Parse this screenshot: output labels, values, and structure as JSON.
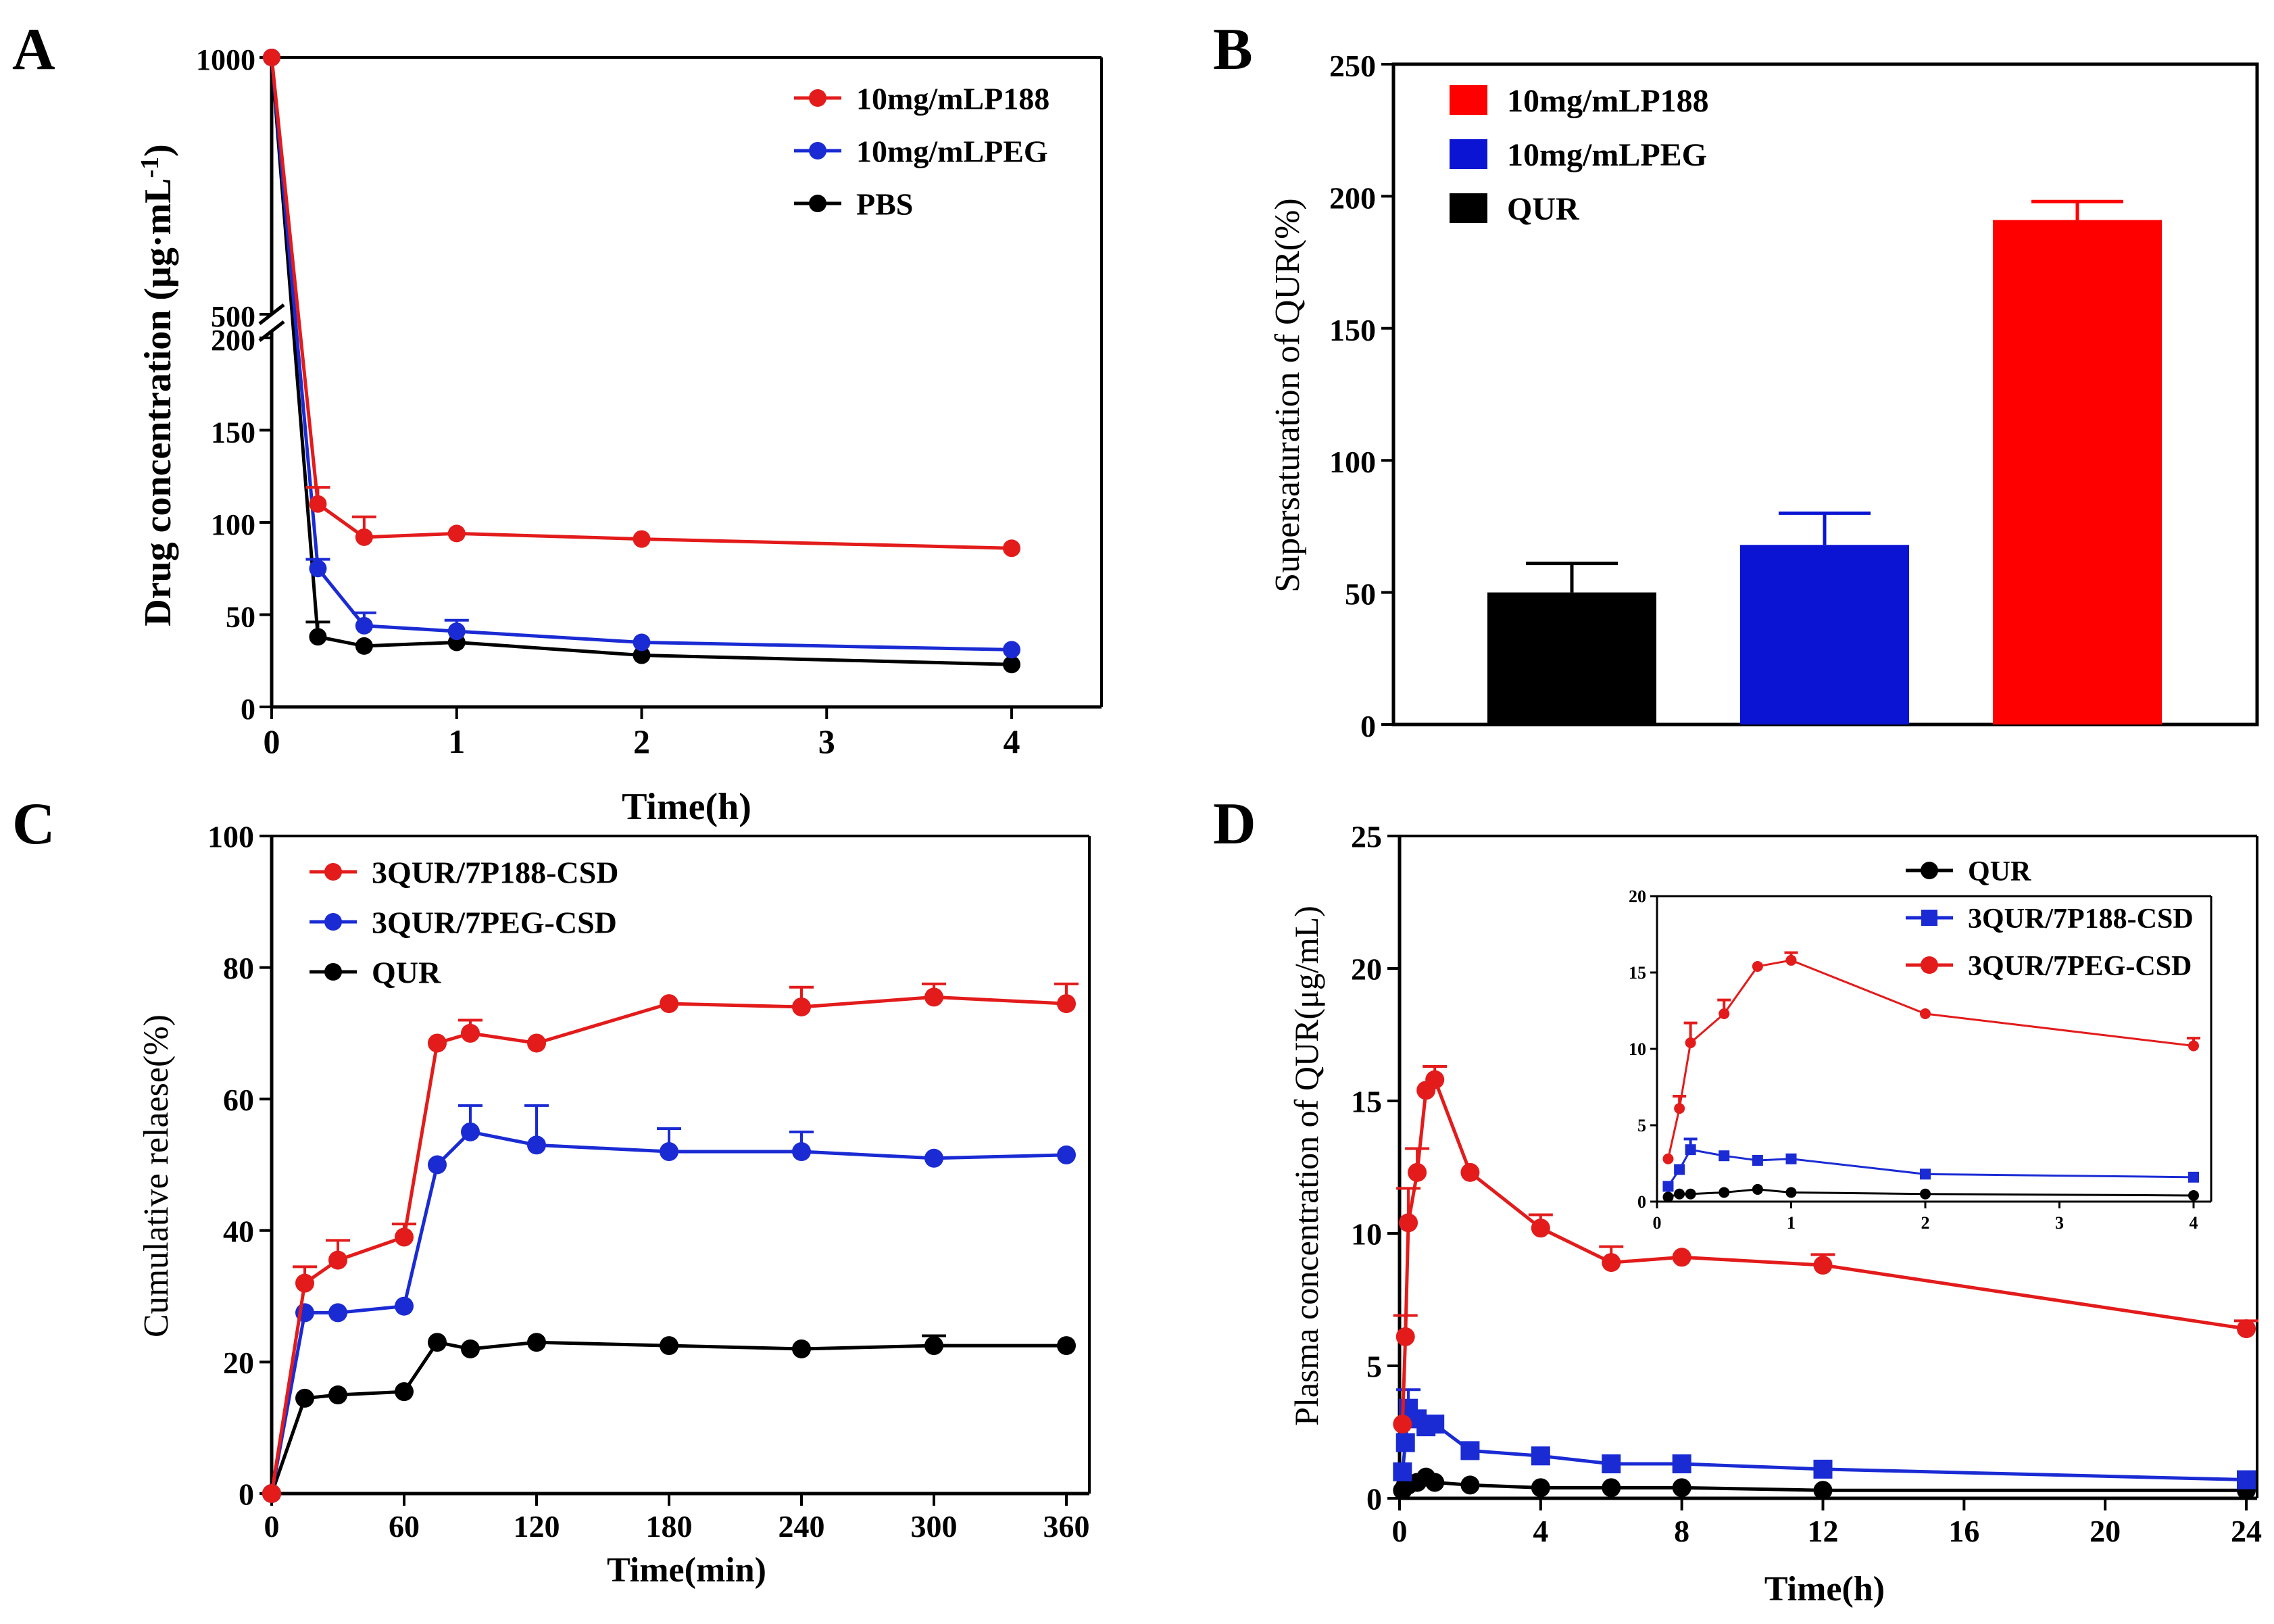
{
  "colors": {
    "red": "#e31b1b",
    "blue": "#1a2bd4",
    "black": "#000000",
    "bar_red": "#ff0000",
    "bar_blue": "#0a14d2"
  },
  "panels": {
    "a": "A",
    "b": "B",
    "c": "C",
    "d": "D"
  },
  "chart_data": [
    {
      "id": "A",
      "type": "line",
      "xlabel": "Time(h)",
      "ylabel": "Drug concentration (μg·mL",
      "ylabel_sup": "-1",
      "ylabel_close": ")",
      "x_ticks": [
        0,
        1,
        2,
        3,
        4
      ],
      "y_ticks_lower": [
        0,
        50,
        100,
        150,
        200
      ],
      "y_ticks_upper": [
        500,
        1000
      ],
      "ylim_lower": [
        0,
        200
      ],
      "ylim_upper": [
        500,
        1000
      ],
      "y_break": true,
      "series": [
        {
          "name": "10mg/mLP188",
          "color": "#e31b1b",
          "x": [
            0,
            0.25,
            0.5,
            1,
            2,
            4
          ],
          "y": [
            1000,
            110,
            92,
            94,
            91,
            86
          ],
          "err": [
            0,
            9,
            11,
            0,
            0,
            0
          ]
        },
        {
          "name": "10mg/mLPEG",
          "color": "#1a2bd4",
          "x": [
            0,
            0.25,
            0.5,
            1,
            2,
            4
          ],
          "y": [
            1000,
            75,
            44,
            41,
            35,
            31
          ],
          "err": [
            0,
            5,
            7,
            6,
            0,
            0
          ]
        },
        {
          "name": "PBS",
          "color": "#000000",
          "x": [
            0,
            0.25,
            0.5,
            1,
            2,
            4
          ],
          "y": [
            1000,
            38,
            33,
            35,
            28,
            23
          ],
          "err": [
            0,
            8,
            0,
            0,
            0,
            0
          ]
        }
      ]
    },
    {
      "id": "B",
      "type": "bar",
      "ylabel": "Supersaturation of QUR(%)",
      "y_ticks": [
        0,
        50,
        100,
        150,
        200,
        250
      ],
      "ylim": [
        0,
        250
      ],
      "categories": [
        "QUR",
        "10mg/mLPEG",
        "10mg/mLP188"
      ],
      "values": [
        50,
        68,
        191
      ],
      "err": [
        11,
        12,
        7
      ],
      "bar_colors": [
        "#000000",
        "#0a14d2",
        "#ff0000"
      ],
      "legend": [
        {
          "name": "10mg/mLP188",
          "color": "#ff0000"
        },
        {
          "name": "10mg/mLPEG",
          "color": "#0a14d2"
        },
        {
          "name": "QUR",
          "color": "#000000"
        }
      ]
    },
    {
      "id": "C",
      "type": "line",
      "xlabel": "Time(min)",
      "ylabel": "Cumulative relaese(%)",
      "x_ticks": [
        0,
        60,
        120,
        180,
        240,
        300,
        360
      ],
      "y_ticks": [
        0,
        20,
        40,
        60,
        80,
        100
      ],
      "xlim": [
        0,
        360
      ],
      "ylim": [
        0,
        100
      ],
      "series": [
        {
          "name": "3QUR/7P188-CSD",
          "color": "#e31b1b",
          "x": [
            0,
            15,
            30,
            60,
            75,
            90,
            120,
            180,
            240,
            300,
            360
          ],
          "y": [
            0,
            32,
            35.5,
            39,
            68.5,
            70,
            68.5,
            74.5,
            74,
            75.5,
            74.5
          ],
          "err": [
            0,
            2.5,
            3,
            2,
            0,
            2,
            0,
            0,
            3,
            2,
            3
          ]
        },
        {
          "name": "3QUR/7PEG-CSD",
          "color": "#1a2bd4",
          "x": [
            0,
            15,
            30,
            60,
            75,
            90,
            120,
            180,
            240,
            300,
            360
          ],
          "y": [
            0,
            27.5,
            27.5,
            28.5,
            50,
            55,
            53,
            52,
            52,
            51,
            51.5
          ],
          "err": [
            0,
            0,
            0,
            0,
            0,
            4,
            6,
            3.5,
            3,
            0,
            0
          ]
        },
        {
          "name": "QUR",
          "color": "#000000",
          "x": [
            0,
            15,
            30,
            60,
            75,
            90,
            120,
            180,
            240,
            300,
            360
          ],
          "y": [
            0,
            14.5,
            15,
            15.5,
            23,
            22,
            23,
            22.5,
            22,
            22.5,
            22.5
          ],
          "err": [
            0,
            0,
            0,
            0,
            0,
            0,
            0,
            0,
            0,
            1.5,
            0
          ]
        }
      ]
    },
    {
      "id": "D",
      "type": "line",
      "xlabel": "Time(h)",
      "ylabel": "Plasma concentration of QUR(μg/mL)",
      "x_ticks": [
        0,
        4,
        8,
        12,
        16,
        20,
        24
      ],
      "y_ticks": [
        0,
        5,
        10,
        15,
        20,
        25
      ],
      "xlim": [
        0,
        24
      ],
      "ylim": [
        0,
        25
      ],
      "series": [
        {
          "name": "QUR",
          "color": "#000000",
          "marker": "circle",
          "x": [
            0.083,
            0.167,
            0.25,
            0.5,
            0.75,
            1,
            2,
            4,
            6,
            8,
            12,
            24
          ],
          "y": [
            0.3,
            0.5,
            0.5,
            0.6,
            0.8,
            0.6,
            0.5,
            0.4,
            0.4,
            0.4,
            0.3,
            0.3
          ],
          "err": [
            0,
            0,
            0,
            0,
            0,
            0,
            0,
            0,
            0,
            0,
            0,
            0
          ]
        },
        {
          "name": "3QUR/7P188-CSD",
          "color": "#1a2bd4",
          "marker": "square",
          "x": [
            0.083,
            0.167,
            0.25,
            0.5,
            0.75,
            1,
            2,
            4,
            6,
            8,
            12,
            24
          ],
          "y": [
            1.0,
            2.1,
            3.4,
            3.0,
            2.7,
            2.8,
            1.8,
            1.6,
            1.3,
            1.3,
            1.1,
            0.7
          ],
          "err": [
            0,
            0,
            0.7,
            0,
            0,
            0,
            0,
            0,
            0,
            0,
            0,
            0
          ]
        },
        {
          "name": "3QUR/7PEG-CSD",
          "color": "#e31b1b",
          "marker": "circle",
          "x": [
            0.083,
            0.167,
            0.25,
            0.5,
            0.75,
            1,
            2,
            4,
            6,
            8,
            12,
            24
          ],
          "y": [
            2.8,
            6.1,
            10.4,
            12.3,
            15.4,
            15.8,
            12.3,
            10.2,
            8.9,
            9.1,
            8.8,
            6.4
          ],
          "err": [
            0,
            0.8,
            1.3,
            0.9,
            0,
            0.5,
            0,
            0.5,
            0.6,
            0,
            0.4,
            0.3
          ]
        }
      ],
      "inset": {
        "x_ticks": [
          0,
          1,
          2,
          3,
          4
        ],
        "y_ticks": [
          0,
          5,
          10,
          15,
          20
        ],
        "xlim": [
          0,
          4
        ],
        "ylim": [
          0,
          20
        ],
        "series": [
          {
            "name": "QUR",
            "color": "#000000",
            "x": [
              0.083,
              0.167,
              0.25,
              0.5,
              0.75,
              1,
              2,
              4
            ],
            "y": [
              0.3,
              0.5,
              0.5,
              0.6,
              0.8,
              0.6,
              0.5,
              0.4
            ],
            "err": [
              0,
              0,
              0,
              0,
              0,
              0,
              0,
              0
            ]
          },
          {
            "name": "3QUR/7P188-CSD",
            "color": "#1a2bd4",
            "x": [
              0.083,
              0.167,
              0.25,
              0.5,
              0.75,
              1,
              2,
              4
            ],
            "y": [
              1.0,
              2.1,
              3.4,
              3.0,
              2.7,
              2.8,
              1.8,
              1.6
            ],
            "err": [
              0,
              0,
              0.7,
              0,
              0,
              0,
              0,
              0
            ]
          },
          {
            "name": "3QUR/7PEG-CSD",
            "color": "#e31b1b",
            "x": [
              0.083,
              0.167,
              0.25,
              0.5,
              0.75,
              1,
              2,
              4
            ],
            "y": [
              2.8,
              6.1,
              10.4,
              12.3,
              15.4,
              15.8,
              12.3,
              10.2
            ],
            "err": [
              0,
              0.8,
              1.3,
              0.9,
              0,
              0.5,
              0,
              0.5
            ]
          }
        ]
      }
    }
  ]
}
